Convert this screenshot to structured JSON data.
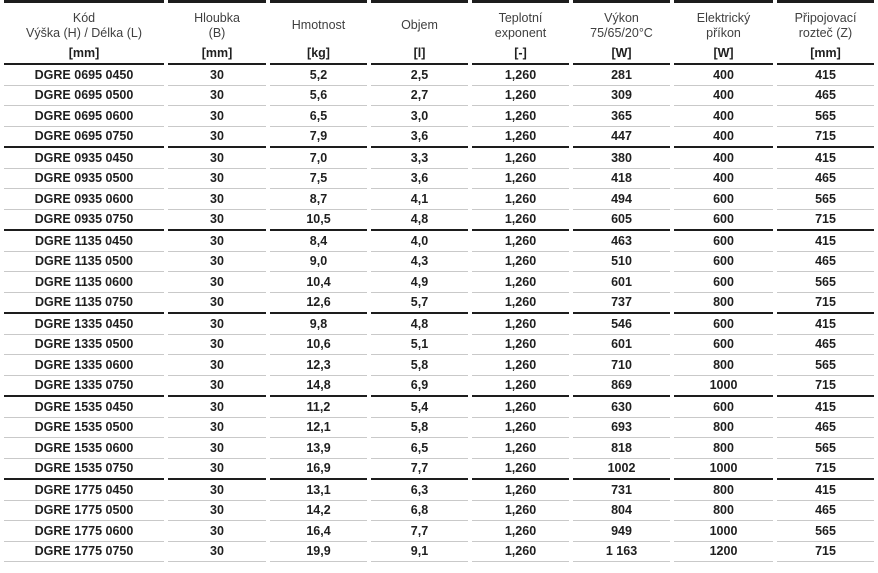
{
  "table": {
    "columns": [
      {
        "id": "kod",
        "line1": "Kód",
        "line2": "Výška (H) / Délka (L)",
        "unit": "[mm]"
      },
      {
        "id": "hloubka",
        "line1": "Hloubka",
        "line2": "(B)",
        "unit": "[mm]"
      },
      {
        "id": "hmotnost",
        "line1": "Hmotnost",
        "line2": "",
        "unit": "[kg]"
      },
      {
        "id": "objem",
        "line1": "Objem",
        "line2": "",
        "unit": "[l]"
      },
      {
        "id": "teplotni-exponent",
        "line1": "Teplotní",
        "line2": "exponent",
        "unit": "[-]"
      },
      {
        "id": "vykon",
        "line1": "Výkon",
        "line2": "75/65/20°C",
        "unit": "[W]"
      },
      {
        "id": "elektricky-prikon",
        "line1": "Elektrický",
        "line2": "příkon",
        "unit": "[W]"
      },
      {
        "id": "pripojovaci-roztec",
        "line1": "Připojovací",
        "line2": "rozteč (Z)",
        "unit": "[mm]"
      }
    ],
    "rows": [
      [
        "DGRE 0695 0450",
        "30",
        "5,2",
        "2,5",
        "1,260",
        "281",
        "400",
        "415"
      ],
      [
        "DGRE 0695 0500",
        "30",
        "5,6",
        "2,7",
        "1,260",
        "309",
        "400",
        "465"
      ],
      [
        "DGRE 0695 0600",
        "30",
        "6,5",
        "3,0",
        "1,260",
        "365",
        "400",
        "565"
      ],
      [
        "DGRE 0695 0750",
        "30",
        "7,9",
        "3,6",
        "1,260",
        "447",
        "400",
        "715"
      ],
      [
        "DGRE 0935 0450",
        "30",
        "7,0",
        "3,3",
        "1,260",
        "380",
        "400",
        "415"
      ],
      [
        "DGRE 0935 0500",
        "30",
        "7,5",
        "3,6",
        "1,260",
        "418",
        "400",
        "465"
      ],
      [
        "DGRE 0935 0600",
        "30",
        "8,7",
        "4,1",
        "1,260",
        "494",
        "600",
        "565"
      ],
      [
        "DGRE 0935 0750",
        "30",
        "10,5",
        "4,8",
        "1,260",
        "605",
        "600",
        "715"
      ],
      [
        "DGRE 1135 0450",
        "30",
        "8,4",
        "4,0",
        "1,260",
        "463",
        "600",
        "415"
      ],
      [
        "DGRE 1135 0500",
        "30",
        "9,0",
        "4,3",
        "1,260",
        "510",
        "600",
        "465"
      ],
      [
        "DGRE 1135 0600",
        "30",
        "10,4",
        "4,9",
        "1,260",
        "601",
        "600",
        "565"
      ],
      [
        "DGRE 1135 0750",
        "30",
        "12,6",
        "5,7",
        "1,260",
        "737",
        "800",
        "715"
      ],
      [
        "DGRE 1335 0450",
        "30",
        "9,8",
        "4,8",
        "1,260",
        "546",
        "600",
        "415"
      ],
      [
        "DGRE 1335 0500",
        "30",
        "10,6",
        "5,1",
        "1,260",
        "601",
        "600",
        "465"
      ],
      [
        "DGRE 1335 0600",
        "30",
        "12,3",
        "5,8",
        "1,260",
        "710",
        "800",
        "565"
      ],
      [
        "DGRE 1335 0750",
        "30",
        "14,8",
        "6,9",
        "1,260",
        "869",
        "1000",
        "715"
      ],
      [
        "DGRE 1535 0450",
        "30",
        "11,2",
        "5,4",
        "1,260",
        "630",
        "600",
        "415"
      ],
      [
        "DGRE 1535 0500",
        "30",
        "12,1",
        "5,8",
        "1,260",
        "693",
        "800",
        "465"
      ],
      [
        "DGRE 1535 0600",
        "30",
        "13,9",
        "6,5",
        "1,260",
        "818",
        "800",
        "565"
      ],
      [
        "DGRE 1535 0750",
        "30",
        "16,9",
        "7,7",
        "1,260",
        "1002",
        "1000",
        "715"
      ],
      [
        "DGRE 1775 0450",
        "30",
        "13,1",
        "6,3",
        "1,260",
        "731",
        "800",
        "415"
      ],
      [
        "DGRE 1775 0500",
        "30",
        "14,2",
        "6,8",
        "1,260",
        "804",
        "800",
        "465"
      ],
      [
        "DGRE 1775 0600",
        "30",
        "16,4",
        "7,7",
        "1,260",
        "949",
        "1000",
        "565"
      ],
      [
        "DGRE 1775 0750",
        "30",
        "19,9",
        "9,1",
        "1,260",
        "1 163",
        "1200",
        "715"
      ]
    ],
    "group_separator_after_row_indexes": [
      3,
      7,
      11,
      15,
      19
    ],
    "colors": {
      "thick_border": "#1d1d1d",
      "thin_border": "#c9c9c9",
      "text": "#1f1f1f",
      "header_text": "#404040"
    }
  }
}
